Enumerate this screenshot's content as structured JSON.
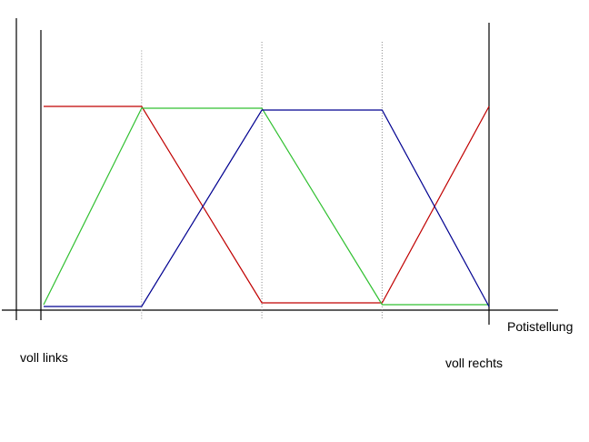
{
  "labels": {
    "x_axis": "Potistellung",
    "left_end": "voll links",
    "right_end": "voll rechts"
  },
  "colors": {
    "axis": "#000000",
    "gridline_light": "#c8c8c8",
    "gridline_dotted": "#8c8c8c",
    "red_series": "#c00000",
    "green_series": "#30c030",
    "blue_series": "#000090"
  },
  "chart_data": {
    "type": "line",
    "title": "",
    "xlabel": "Potistellung",
    "x_axis_left_annotation": "voll links",
    "x_axis_right_annotation": "voll rechts",
    "x_range_percent": [
      0,
      100
    ],
    "ylim": [
      0,
      1
    ],
    "legend": "none",
    "grid": "vertical dotted lines at series breakpoints",
    "gridlines": [
      {
        "pos_percent": 22,
        "style": "light"
      },
      {
        "pos_percent": 49,
        "style": "dotted"
      },
      {
        "pos_percent": 76,
        "style": "dotted"
      }
    ],
    "series": [
      {
        "name": "red-curve",
        "color": "#c00000",
        "x": [
          0,
          22,
          49,
          76,
          100
        ],
        "values": [
          1,
          1,
          0,
          0,
          1
        ]
      },
      {
        "name": "green-curve",
        "color": "#30c030",
        "x": [
          0,
          22,
          49,
          76,
          100
        ],
        "values": [
          0,
          1,
          1,
          0,
          0
        ]
      },
      {
        "name": "blue-curve",
        "color": "#000090",
        "x": [
          0,
          22,
          49,
          76,
          100
        ],
        "values": [
          0,
          0,
          1,
          1,
          0
        ]
      }
    ]
  }
}
